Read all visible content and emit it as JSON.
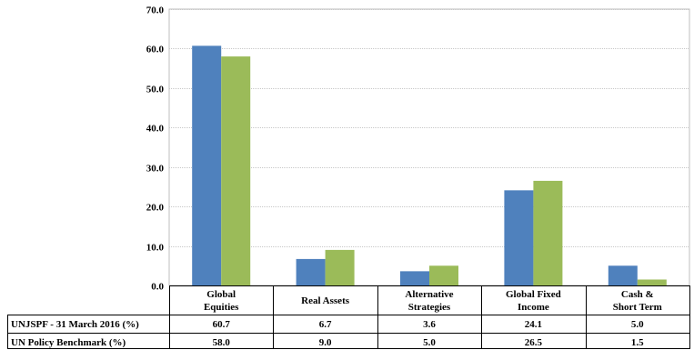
{
  "chart_data": {
    "type": "bar",
    "title": "",
    "xlabel": "",
    "ylabel": "",
    "ylim": [
      0,
      70
    ],
    "yticks": [
      "0.0",
      "10.0",
      "20.0",
      "30.0",
      "40.0",
      "50.0",
      "60.0",
      "70.0"
    ],
    "grid": true,
    "legend": "data-table-rows",
    "categories": [
      [
        "Global",
        "Equities"
      ],
      [
        "Real Assets"
      ],
      [
        "Alternative",
        "Strategies"
      ],
      [
        "Global Fixed",
        "Income"
      ],
      [
        "Cash &",
        "Short Term"
      ]
    ],
    "series": [
      {
        "name": "UNJSPF - 31 March 2016 (%)",
        "color": "#4f81bd",
        "values": [
          60.7,
          6.7,
          3.6,
          24.1,
          5.0
        ],
        "labels": [
          "60.7",
          "6.7",
          "3.6",
          "24.1",
          "5.0"
        ]
      },
      {
        "name": "UN Policy Benchmark (%)",
        "color": "#9bbb59",
        "values": [
          58.0,
          9.0,
          5.0,
          26.5,
          1.5
        ],
        "labels": [
          "58.0",
          "9.0",
          "5.0",
          "26.5",
          "1.5"
        ]
      }
    ]
  }
}
